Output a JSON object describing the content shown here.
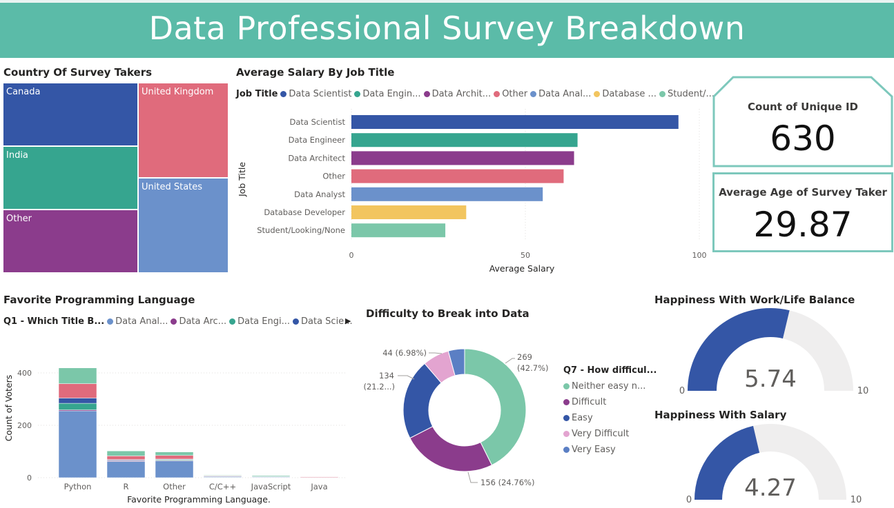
{
  "title": "Data Professional Survey Breakdown",
  "colors": {
    "banner": "#5bbba8",
    "blue": "#3456a6",
    "teal": "#36a58f",
    "purple": "#8b3c8c",
    "pink": "#e06b7c",
    "lightblue": "#6b91cb",
    "yellow": "#f2c55f",
    "mint": "#7bc7a9",
    "lightpink": "#e3a4d0",
    "gauge_track": "#efeeee"
  },
  "treemap": {
    "title": "Country Of Survey Takers",
    "cells": [
      {
        "label": "Canada",
        "color": "#3456a6"
      },
      {
        "label": "India",
        "color": "#36a58f"
      },
      {
        "label": "Other",
        "color": "#8b3c8c"
      },
      {
        "label": "United Kingdom",
        "color": "#e06b7c"
      },
      {
        "label": "United States",
        "color": "#6b91cb"
      }
    ]
  },
  "salary": {
    "title": "Average Salary By Job Title",
    "legend_title": "Job Title",
    "legend": [
      {
        "label": "Data Scientist",
        "color": "#3456a6"
      },
      {
        "label": "Data Engin...",
        "color": "#36a58f"
      },
      {
        "label": "Data Archit...",
        "color": "#8b3c8c"
      },
      {
        "label": "Other",
        "color": "#e06b7c"
      },
      {
        "label": "Data Anal...",
        "color": "#6b91cb"
      },
      {
        "label": "Database ...",
        "color": "#f2c55f"
      },
      {
        "label": "Student/...",
        "color": "#7bc7a9"
      }
    ]
  },
  "count_card": {
    "label": "Count of Unique ID",
    "value": "630"
  },
  "age_card": {
    "label": "Average Age of Survey Taker",
    "value": "29.87"
  },
  "language": {
    "title": "Favorite Programming Language",
    "legend_title": "Q1 - Which Title B...",
    "legend": [
      {
        "label": "Data Anal...",
        "color": "#6b91cb"
      },
      {
        "label": "Data Arc...",
        "color": "#8b3c8c"
      },
      {
        "label": "Data Engi...",
        "color": "#36a58f"
      },
      {
        "label": "Data Scie...",
        "color": "#3456a6"
      }
    ],
    "more_icon": "▶"
  },
  "difficulty": {
    "title": "Difficulty to Break into Data",
    "legend_title": "Q7 - How difficul...",
    "legend": [
      {
        "label": "Neither easy n...",
        "color": "#7bc7a9"
      },
      {
        "label": "Difficult",
        "color": "#8b3c8c"
      },
      {
        "label": "Easy",
        "color": "#3456a6"
      },
      {
        "label": "Very Difficult",
        "color": "#e3a4d0"
      },
      {
        "label": "Very Easy",
        "color": "#5b7fc4"
      }
    ]
  },
  "gauge_worklife": {
    "title": "Happiness With Work/Life Balance",
    "min": "0",
    "max": "10",
    "value_label": "5.74",
    "value": 5.74
  },
  "gauge_salary": {
    "title": "Happiness With Salary",
    "min": "0",
    "max": "10",
    "value_label": "4.27",
    "value": 4.27
  },
  "chart_data": [
    {
      "type": "bar",
      "orientation": "horizontal",
      "title": "Average Salary By Job Title",
      "xlabel": "Average Salary",
      "ylabel": "Job Title",
      "xlim": [
        0,
        100
      ],
      "xticks": [
        "0",
        "50",
        "100"
      ],
      "categories": [
        "Data Scientist",
        "Data Engineer",
        "Data Architect",
        "Other",
        "Data Analyst",
        "Database Developer",
        "Student/Looking/None"
      ],
      "values": [
        94,
        65,
        64,
        61,
        55,
        33,
        27
      ],
      "colors": [
        "#3456a6",
        "#36a58f",
        "#8b3c8c",
        "#e06b7c",
        "#6b91cb",
        "#f2c55f",
        "#7bc7a9"
      ]
    },
    {
      "type": "bar",
      "stacked": true,
      "title": "Favorite Programming Language",
      "xlabel": "Favorite Programming Language.",
      "ylabel": "Count of Voters",
      "ylim": [
        0,
        450
      ],
      "yticks": [
        "0",
        "200",
        "400"
      ],
      "categories": [
        "Python",
        "R",
        "Other",
        "C/C++",
        "JavaScript",
        "Java"
      ],
      "series": [
        {
          "name": "Data Anal...",
          "color": "#6b91cb",
          "values": [
            255,
            62,
            64,
            3,
            3,
            2
          ]
        },
        {
          "name": "Data Arc...",
          "color": "#8b3c8c",
          "values": [
            4,
            3,
            2,
            1,
            1,
            0
          ]
        },
        {
          "name": "Data Engi...",
          "color": "#36a58f",
          "values": [
            25,
            2,
            3,
            1,
            1,
            0
          ]
        },
        {
          "name": "Data Scie...",
          "color": "#3456a6",
          "values": [
            20,
            2,
            2,
            1,
            0,
            0
          ]
        },
        {
          "color": "#e06b7c",
          "values": [
            55,
            14,
            14,
            2,
            0,
            1
          ]
        },
        {
          "color": "#7bc7a9",
          "values": [
            60,
            19,
            13,
            2,
            3,
            0
          ]
        }
      ]
    },
    {
      "type": "pie",
      "donut": true,
      "title": "Difficulty to Break into Data",
      "slices": [
        {
          "label": "Neither easy n...",
          "value": 269,
          "pct": "42.7%",
          "color": "#7bc7a9"
        },
        {
          "label": "Difficult",
          "value": 156,
          "pct": "24.76%",
          "color": "#8b3c8c"
        },
        {
          "label": "Easy",
          "value": 134,
          "pct": "21.2...",
          "color": "#3456a6"
        },
        {
          "label": "Very Difficult",
          "value": 44,
          "pct": "6.98%",
          "color": "#e3a4d0"
        },
        {
          "label": "Very Easy",
          "value": 27,
          "pct": "",
          "color": "#5b7fc4"
        }
      ],
      "data_labels": [
        "269",
        "(42.7%)",
        "156 (24.76%)",
        "134",
        "(21.2...)",
        "44 (6.98%)"
      ]
    }
  ]
}
